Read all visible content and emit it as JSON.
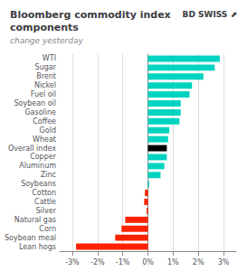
{
  "chart_data": {
    "type": "bar",
    "orientation": "horizontal",
    "title": "Bloomberg commodity index\ncomponents",
    "subtitle": "change yesterday",
    "annotations": [
      "BD",
      "SWISS",
      "⬈"
    ],
    "categories": [
      "WTI",
      "Sugar",
      "Brent",
      "Nickel",
      "Fuel oil",
      "Soybean oil",
      "Gasoline",
      "Coffee",
      "Gold",
      "Wheat",
      "Overall index",
      "Copper",
      "Aluminum",
      "Zinc",
      "Soybeans",
      "Cotton",
      "Cattle",
      "Silver",
      "Natural gas",
      "Corn",
      "Soybean meal",
      "Lean hogs"
    ],
    "values": [
      2.85,
      2.65,
      2.2,
      1.75,
      1.65,
      1.3,
      1.3,
      1.25,
      0.85,
      0.8,
      0.75,
      0.75,
      0.65,
      0.5,
      0.05,
      -0.12,
      -0.15,
      -0.05,
      -0.9,
      -1.05,
      -1.3,
      -2.85
    ],
    "colors": [
      "#00d4c0",
      "#00d4c0",
      "#00d4c0",
      "#00d4c0",
      "#00d4c0",
      "#00d4c0",
      "#00d4c0",
      "#00d4c0",
      "#00d4c0",
      "#00d4c0",
      "#000000",
      "#00d4c0",
      "#00d4c0",
      "#00d4c0",
      "#00d4c0",
      "#ff2200",
      "#ff2200",
      "#ff2200",
      "#ff2200",
      "#ff2200",
      "#ff2200",
      "#ff2200"
    ],
    "xlim": [
      -3.5,
      3.5
    ],
    "xticks": [
      {
        "value": -3,
        "label": "-3%"
      },
      {
        "value": -2,
        "label": "-2%"
      },
      {
        "value": -1,
        "label": "-1%"
      },
      {
        "value": 0,
        "label": "0%"
      },
      {
        "value": 1,
        "label": "1%"
      },
      {
        "value": 2,
        "label": "2%"
      },
      {
        "value": 3,
        "label": "3%"
      }
    ],
    "grid": true
  }
}
